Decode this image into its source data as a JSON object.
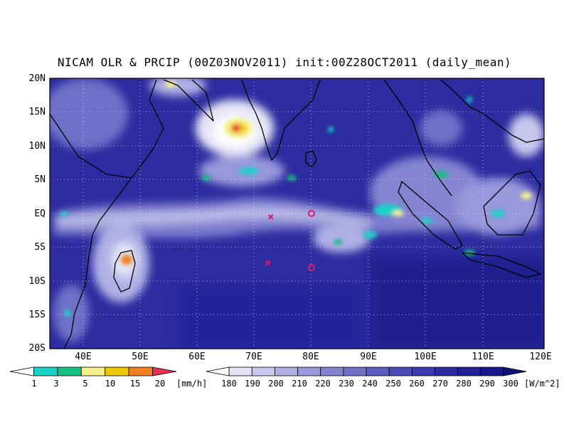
{
  "title": "NICAM OLR & PRCIP (00Z03NOV2011) init:00Z28OCT2011 (daily_mean)",
  "lat_labels": [
    "20N",
    "15N",
    "10N",
    "5N",
    "EQ",
    "5S",
    "10S",
    "15S",
    "20S"
  ],
  "lon_labels": [
    "40E",
    "50E",
    "60E",
    "70E",
    "80E",
    "90E",
    "100E",
    "110E",
    "120E"
  ],
  "precip_colorbar": {
    "labels": [
      "1",
      "3",
      "5",
      "10",
      "15",
      "20"
    ],
    "unit": "[mm/h]",
    "colors": [
      "#ffffff",
      "#19d3c8",
      "#18c080",
      "#f5f08a",
      "#f0c800",
      "#f08020",
      "#e83050"
    ]
  },
  "olr_colorbar": {
    "labels": [
      "180",
      "190",
      "200",
      "210",
      "220",
      "230",
      "240",
      "250",
      "260",
      "270",
      "280",
      "290",
      "300"
    ],
    "unit": "[W/m^2]",
    "colors": [
      "#ffffff",
      "#e4e4f6",
      "#c8c8ee",
      "#b0b0e6",
      "#9898dc",
      "#8484d2",
      "#7070c8",
      "#5c5cbe",
      "#4a4ab4",
      "#3a3aaa",
      "#2c2ca0",
      "#202096",
      "#181888",
      "#10107a"
    ]
  },
  "markers": [
    {
      "symbol": "x",
      "lon": 73,
      "lat": -0.5,
      "color": "#e01870"
    },
    {
      "symbol": "o",
      "lon": 80,
      "lat": 0,
      "color": "#e01870"
    },
    {
      "symbol": "x",
      "lon": 72.5,
      "lat": -7.3,
      "color": "#e01870"
    },
    {
      "symbol": "o",
      "lon": 80,
      "lat": -8,
      "color": "#e01870"
    }
  ],
  "map_extent": {
    "lon": [
      35,
      120
    ],
    "lat": [
      -20,
      20
    ]
  },
  "grid": "dotted"
}
